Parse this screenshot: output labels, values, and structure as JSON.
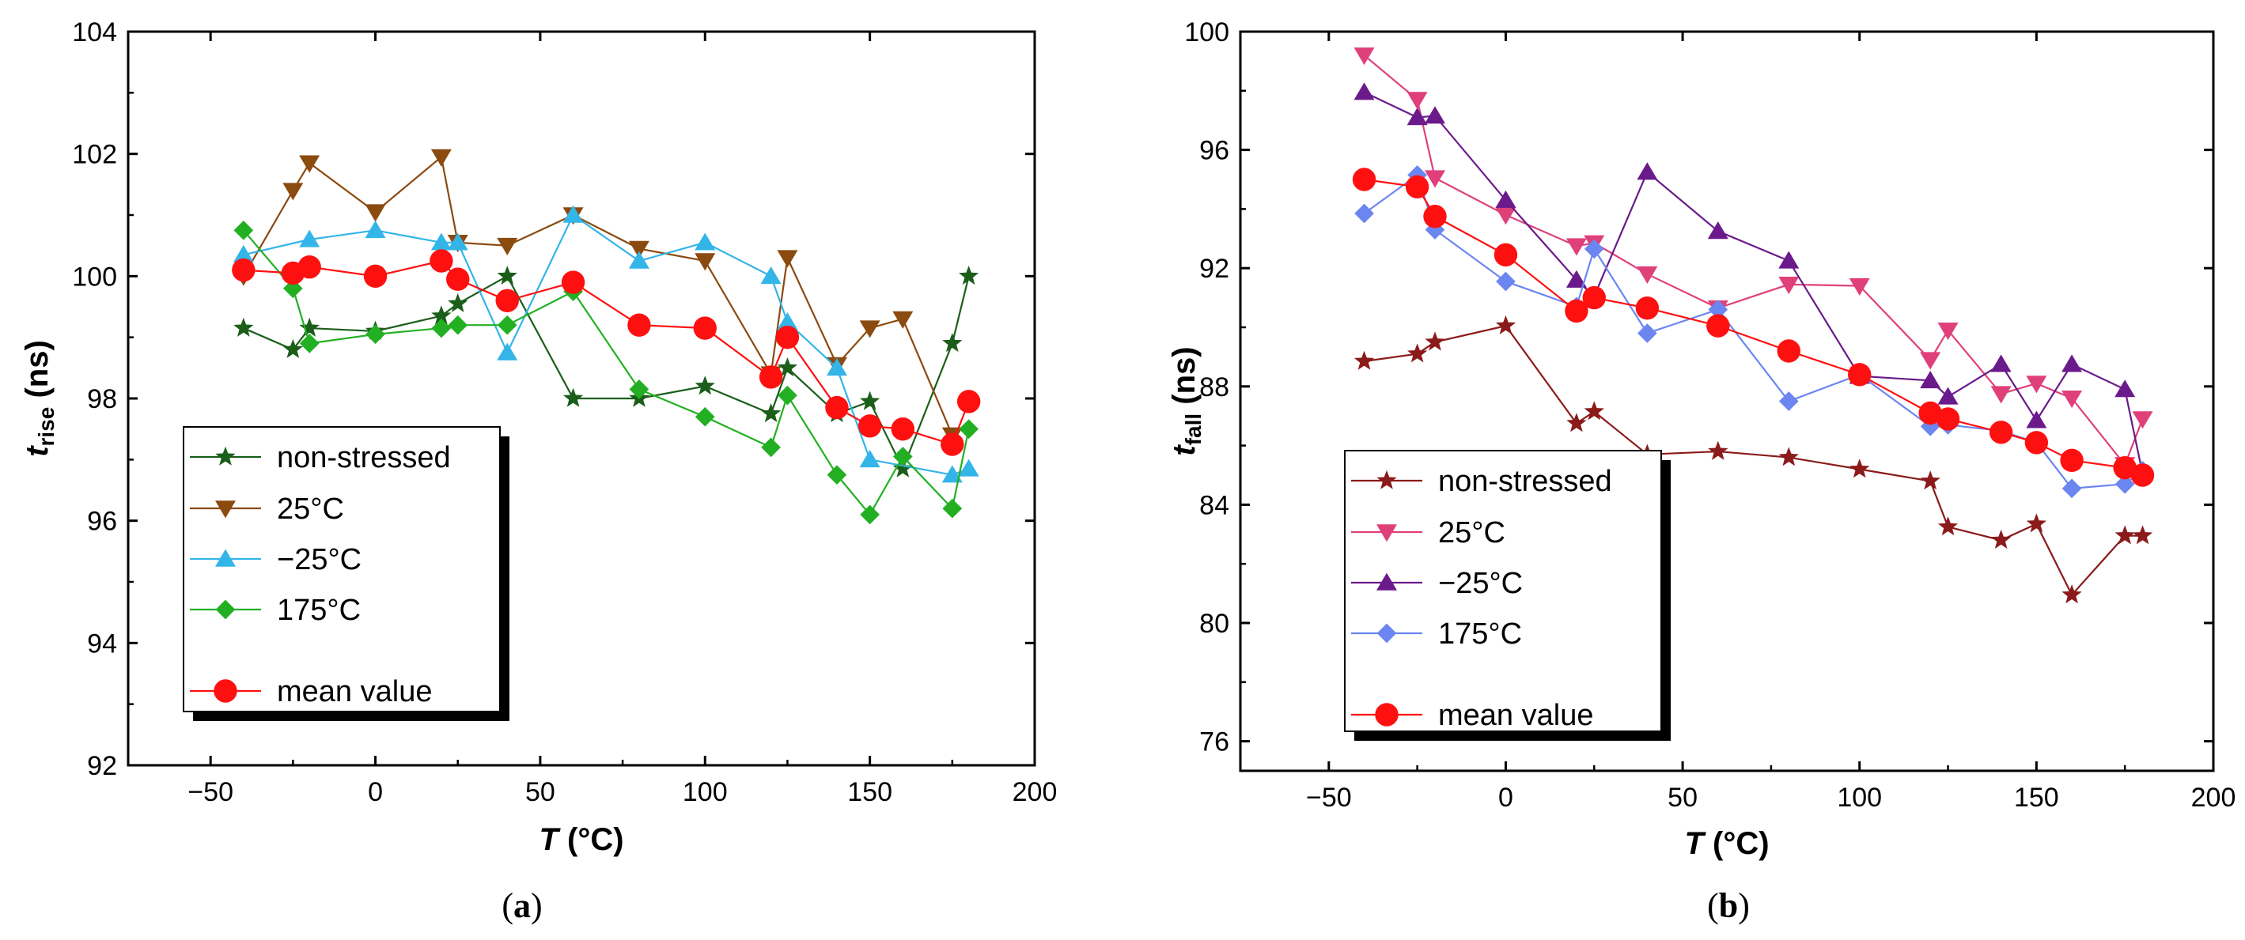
{
  "chart_data": [
    {
      "type": "line",
      "caption": "(a)",
      "xlabel": "T (°C)",
      "xlabel_italic": "T",
      "xlabel_unit": " (°C)",
      "ylabel": "t_rise (ns)",
      "ylabel_main": "t",
      "ylabel_sub": "rise",
      "ylabel_unit": " (ns)",
      "xlim": [
        -75,
        200
      ],
      "ylim": [
        92,
        104
      ],
      "xticks": [
        -50,
        0,
        50,
        100,
        150,
        200
      ],
      "yticks": [
        92,
        94,
        96,
        98,
        100,
        102,
        104
      ],
      "legend_position": "bottom-left",
      "series": [
        {
          "name": "non-stressed",
          "color": "#1a5e1a",
          "marker": "star",
          "x": [
            -40,
            -25,
            -20,
            0,
            20,
            25,
            40,
            60,
            80,
            100,
            120,
            125,
            140,
            150,
            160,
            175,
            180
          ],
          "y": [
            99.15,
            98.8,
            99.15,
            99.1,
            99.35,
            99.55,
            100.0,
            98.0,
            98.0,
            98.2,
            97.75,
            98.5,
            97.75,
            97.95,
            96.85,
            98.9,
            100.0
          ]
        },
        {
          "name": "25°C",
          "color": "#8b4a10",
          "marker": "triangle-down",
          "x": [
            -40,
            -25,
            -20,
            0,
            20,
            25,
            40,
            60,
            80,
            100,
            120,
            125,
            140,
            150,
            160,
            175
          ],
          "y": [
            100.0,
            101.4,
            101.85,
            101.05,
            101.95,
            100.55,
            100.5,
            101.0,
            100.45,
            100.25,
            98.4,
            100.3,
            98.55,
            99.15,
            99.3,
            97.4
          ]
        },
        {
          "name": "−25°C",
          "color": "#33b5e8",
          "marker": "triangle-up",
          "x": [
            -40,
            -20,
            0,
            20,
            25,
            40,
            60,
            80,
            100,
            120,
            125,
            140,
            150,
            175,
            180
          ],
          "y": [
            100.35,
            100.6,
            100.75,
            100.55,
            100.55,
            98.75,
            101.0,
            100.25,
            100.55,
            100.0,
            99.25,
            98.5,
            97.0,
            96.75,
            96.85
          ]
        },
        {
          "name": "175°C",
          "color": "#22b022",
          "marker": "diamond",
          "x": [
            -40,
            -25,
            -20,
            0,
            20,
            25,
            40,
            60,
            80,
            100,
            120,
            125,
            140,
            150,
            160,
            175,
            180
          ],
          "y": [
            100.75,
            99.8,
            98.9,
            99.05,
            99.15,
            99.2,
            99.2,
            99.75,
            98.15,
            97.7,
            97.2,
            98.05,
            96.75,
            96.1,
            97.05,
            96.2,
            97.5
          ]
        },
        {
          "name": "mean value",
          "color": "#ff1010",
          "marker": "circle",
          "x": [
            -40,
            -25,
            -20,
            0,
            20,
            25,
            40,
            60,
            80,
            100,
            120,
            125,
            140,
            150,
            160,
            175,
            180
          ],
          "y": [
            100.1,
            100.05,
            100.15,
            100.0,
            100.25,
            99.95,
            99.6,
            99.9,
            99.2,
            99.15,
            98.35,
            99.0,
            97.85,
            97.55,
            97.5,
            97.25,
            97.95
          ]
        }
      ]
    },
    {
      "type": "line",
      "caption": "(b)",
      "xlabel": "T (°C)",
      "xlabel_italic": "T",
      "xlabel_unit": " (°C)",
      "ylabel": "t_fall (ns)",
      "ylabel_main": "t",
      "ylabel_sub": "fall",
      "ylabel_unit": " (ns)",
      "xlim": [
        -75,
        200
      ],
      "ylim": [
        75,
        100
      ],
      "xticks": [
        -50,
        0,
        50,
        100,
        150,
        200
      ],
      "yticks": [
        76,
        80,
        84,
        88,
        92,
        96,
        100
      ],
      "legend_position": "bottom-left",
      "series": [
        {
          "name": "non-stressed",
          "color": "#8b1a1a",
          "marker": "star",
          "x": [
            -40,
            -25,
            -20,
            0,
            20,
            25,
            40,
            60,
            80,
            100,
            120,
            125,
            140,
            150,
            160,
            175,
            180
          ],
          "y": [
            88.85,
            89.1,
            89.5,
            90.05,
            86.75,
            87.15,
            85.7,
            85.8,
            85.6,
            85.2,
            84.8,
            83.25,
            82.8,
            83.35,
            80.95,
            82.95,
            82.95
          ]
        },
        {
          "name": "25°C",
          "color": "#e0407a",
          "marker": "triangle-down",
          "x": [
            -40,
            -25,
            -20,
            0,
            20,
            25,
            40,
            60,
            80,
            100,
            120,
            125,
            140,
            150,
            160,
            175,
            180
          ],
          "y": [
            99.2,
            97.7,
            95.05,
            93.8,
            92.75,
            92.85,
            91.8,
            90.65,
            91.45,
            91.4,
            88.9,
            89.9,
            87.75,
            88.1,
            87.6,
            85.35,
            86.9
          ]
        },
        {
          "name": "−25°C",
          "color": "#6a1a8a",
          "marker": "triangle-up",
          "x": [
            -40,
            -25,
            -20,
            0,
            20,
            25,
            40,
            60,
            80,
            100,
            120,
            125,
            140,
            150,
            160,
            175,
            180
          ],
          "y": [
            97.95,
            97.1,
            97.15,
            94.3,
            91.6,
            91.05,
            95.25,
            93.25,
            92.25,
            88.35,
            88.2,
            87.65,
            88.75,
            86.85,
            88.75,
            87.9,
            85.05
          ]
        },
        {
          "name": "175°C",
          "color": "#6b86f0",
          "marker": "diamond",
          "x": [
            -40,
            -25,
            -20,
            0,
            20,
            25,
            40,
            60,
            80,
            100,
            120,
            125,
            140,
            150,
            160,
            175,
            180
          ],
          "y": [
            93.85,
            95.15,
            93.3,
            91.55,
            90.7,
            92.65,
            89.8,
            90.6,
            87.5,
            88.4,
            86.65,
            86.7,
            86.5,
            86.1,
            84.55,
            84.7,
            85.15
          ]
        },
        {
          "name": "mean value",
          "color": "#ff1010",
          "marker": "circle",
          "x": [
            -40,
            -25,
            -20,
            0,
            20,
            25,
            40,
            60,
            80,
            100,
            120,
            125,
            140,
            150,
            160,
            175,
            180
          ],
          "y": [
            95.0,
            94.75,
            93.75,
            92.45,
            90.55,
            91.0,
            90.65,
            90.05,
            89.2,
            88.4,
            87.1,
            86.9,
            86.45,
            86.1,
            85.5,
            85.25,
            85.0
          ]
        }
      ]
    }
  ]
}
